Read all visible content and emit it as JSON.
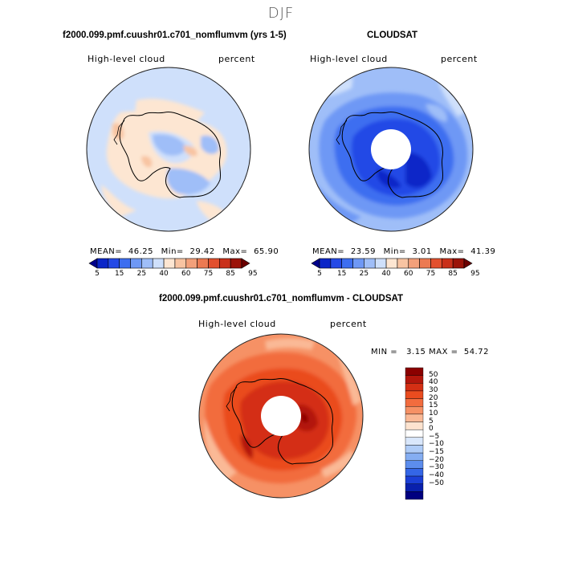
{
  "figure_title": "DJF",
  "chart_data": [
    {
      "type": "heatmap",
      "title": "f2000.099.pmf.cuushr01.c701_nomflumvm (yrs 1-5)",
      "left_label": "High-level cloud",
      "right_label": "percent",
      "stats": {
        "mean_label": "MEAN=",
        "mean": "46.25",
        "min_label": "Min=",
        "min": "29.42",
        "max_label": "Max=",
        "max": "65.90"
      },
      "colorbar_ticks": [
        "5",
        "15",
        "25",
        "40",
        "60",
        "75",
        "85",
        "95"
      ],
      "projection": "south polar stereographic",
      "has_pole_hole": false
    },
    {
      "type": "heatmap",
      "title": "CLOUDSAT",
      "left_label": "High-level cloud",
      "right_label": "percent",
      "stats": {
        "mean_label": "MEAN=",
        "mean": "23.59",
        "min_label": "Min=",
        "min": "3.01",
        "max_label": "Max=",
        "max": "41.39"
      },
      "colorbar_ticks": [
        "5",
        "15",
        "25",
        "40",
        "60",
        "75",
        "85",
        "95"
      ],
      "projection": "south polar stereographic",
      "has_pole_hole": true
    },
    {
      "type": "heatmap",
      "title": "f2000.099.pmf.cuushr01.c701_nomflumvm - CLOUDSAT",
      "left_label": "High-level cloud",
      "right_label": "percent",
      "stats_text": "MIN =   3.15 MAX =  54.72",
      "colorbar_ticks": [
        "50",
        "40",
        "30",
        "20",
        "15",
        "10",
        "5",
        "0",
        "−5",
        "−10",
        "−15",
        "−20",
        "−30",
        "−40",
        "−50"
      ],
      "projection": "south polar stereographic",
      "has_pole_hole": true
    }
  ],
  "colors": {
    "abs_scale": [
      "#00008b",
      "#0b26c8",
      "#2449e6",
      "#3d6ef0",
      "#6e98f5",
      "#9fbef8",
      "#cfe0fb",
      "#fde6d2",
      "#f8c4a2",
      "#f3a07a",
      "#ec7a52",
      "#e2502e",
      "#c9301a",
      "#9b1308",
      "#6b0000"
    ],
    "diff_scale": [
      "#8b0000",
      "#b3160c",
      "#d42f14",
      "#ea4c1f",
      "#f26c3e",
      "#f69165",
      "#fab996",
      "#fde3cf",
      "#ffffff",
      "#d9e7fb",
      "#afccf7",
      "#85aef2",
      "#5c8ded",
      "#3466e6",
      "#1b3fd6",
      "#0920ad",
      "#000080"
    ]
  }
}
